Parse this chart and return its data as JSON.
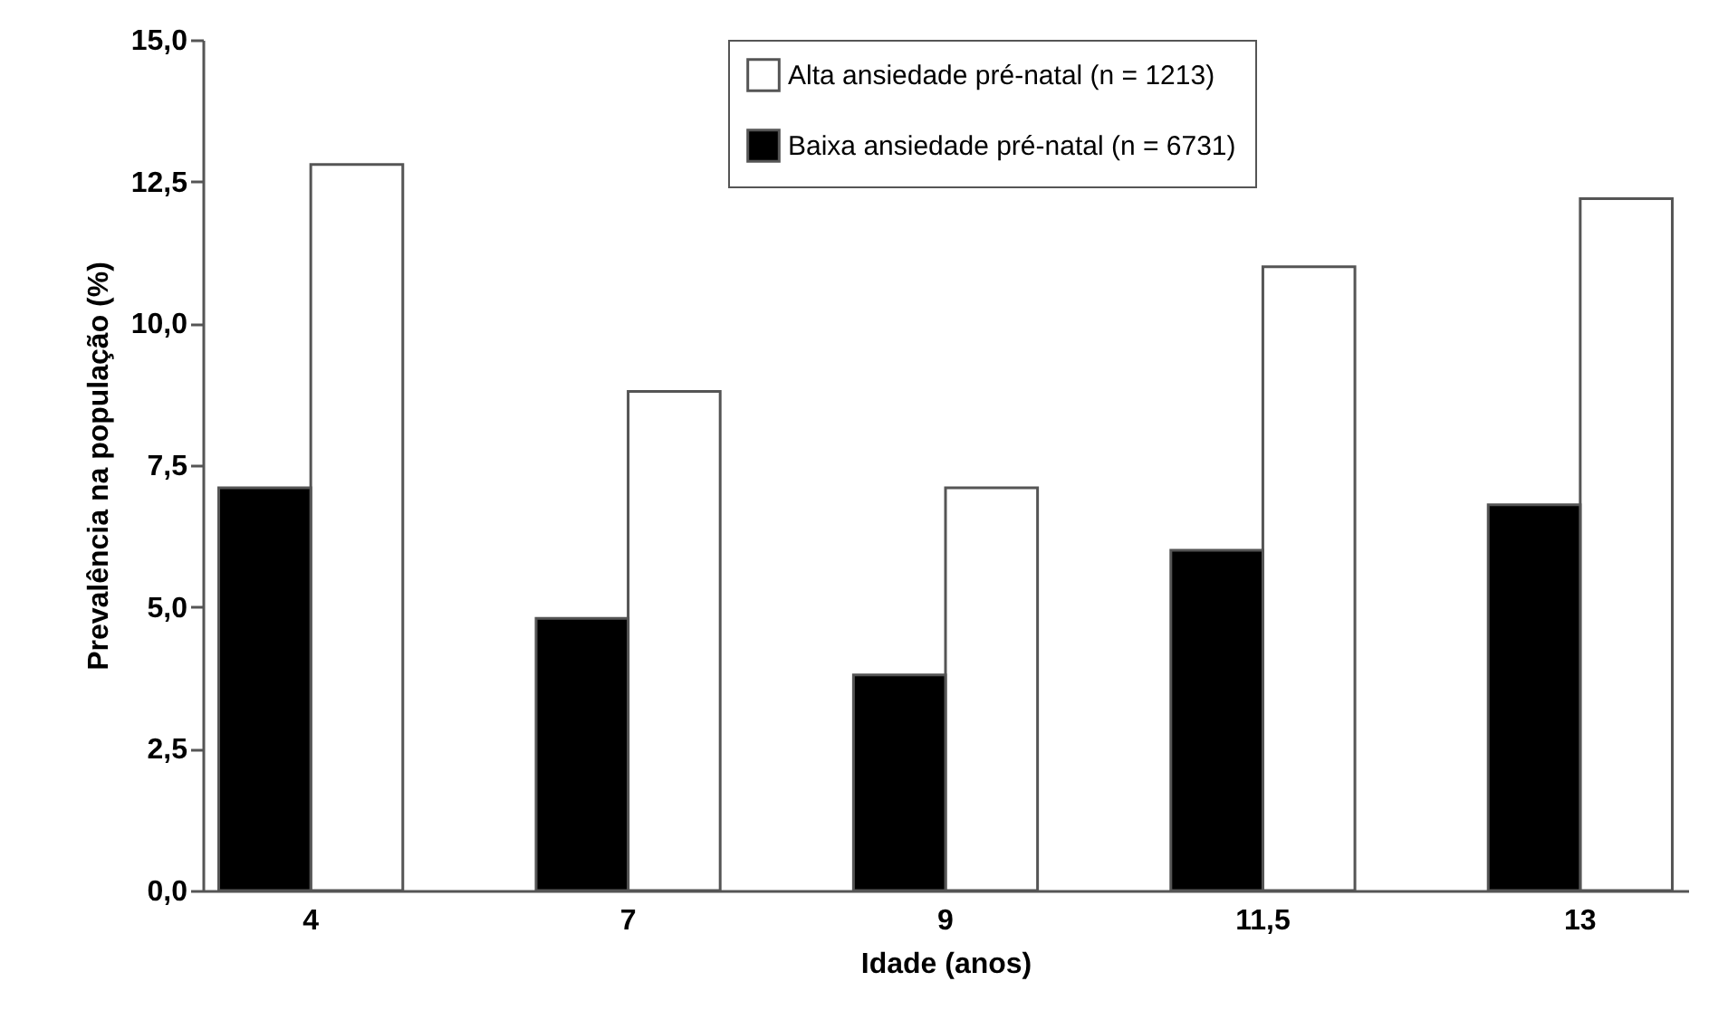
{
  "chart_data": {
    "type": "bar",
    "xlabel": "Idade (anos)",
    "ylabel": "Prevalência na população (%)",
    "categories": [
      "4",
      "7",
      "9",
      "11,5",
      "13"
    ],
    "series": [
      {
        "name": "Alta ansiedade pré-natal (n = 1213)",
        "color": "#ffffff",
        "values": [
          12.8,
          8.8,
          7.1,
          11.0,
          12.2
        ]
      },
      {
        "name": "Baixa ansiedade pré-natal (n = 6731)",
        "color": "#000000",
        "values": [
          7.1,
          4.8,
          3.8,
          6.0,
          6.8
        ]
      }
    ],
    "ylim": [
      0,
      15
    ],
    "yticks": [
      {
        "value": 0,
        "label": "0,0"
      },
      {
        "value": 2.5,
        "label": "2,5"
      },
      {
        "value": 5,
        "label": "5,0"
      },
      {
        "value": 7.5,
        "label": "7,5"
      },
      {
        "value": 10,
        "label": "10,0"
      },
      {
        "value": 12.5,
        "label": "12,5"
      },
      {
        "value": 15,
        "label": "15,0"
      }
    ],
    "grid": false,
    "legend": "top"
  }
}
